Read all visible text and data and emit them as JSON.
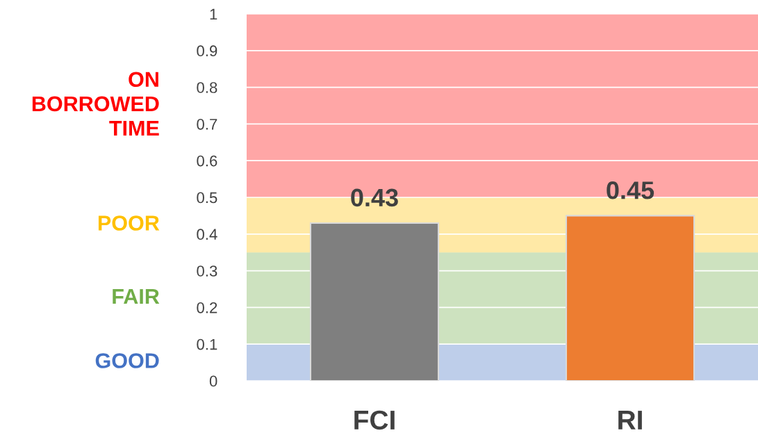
{
  "chart_data": {
    "type": "bar",
    "categories": [
      "FCI",
      "RI"
    ],
    "values": [
      0.43,
      0.45
    ],
    "colors": [
      "#7f7f7f",
      "#ed7d31"
    ],
    "data_labels": true,
    "ylim": [
      0,
      1
    ],
    "yticks": [
      0,
      0.1,
      0.2,
      0.3,
      0.4,
      0.5,
      0.6,
      0.7,
      0.8,
      0.9,
      1
    ],
    "grid": "y",
    "bands": [
      {
        "axis": "y",
        "from": 0,
        "to": 0.1,
        "label": "GOOD",
        "color": "#4472c4"
      },
      {
        "axis": "y",
        "from": 0.1,
        "to": 0.35,
        "label": "FAIR",
        "color": "#70ad47"
      },
      {
        "axis": "y",
        "from": 0.35,
        "to": 0.5,
        "label": "POOR",
        "color": "#ffc000"
      },
      {
        "axis": "y",
        "from": 0.5,
        "to": 1,
        "label": "ON\nBORROWED\nTIME",
        "color": "#ff0000"
      }
    ]
  }
}
